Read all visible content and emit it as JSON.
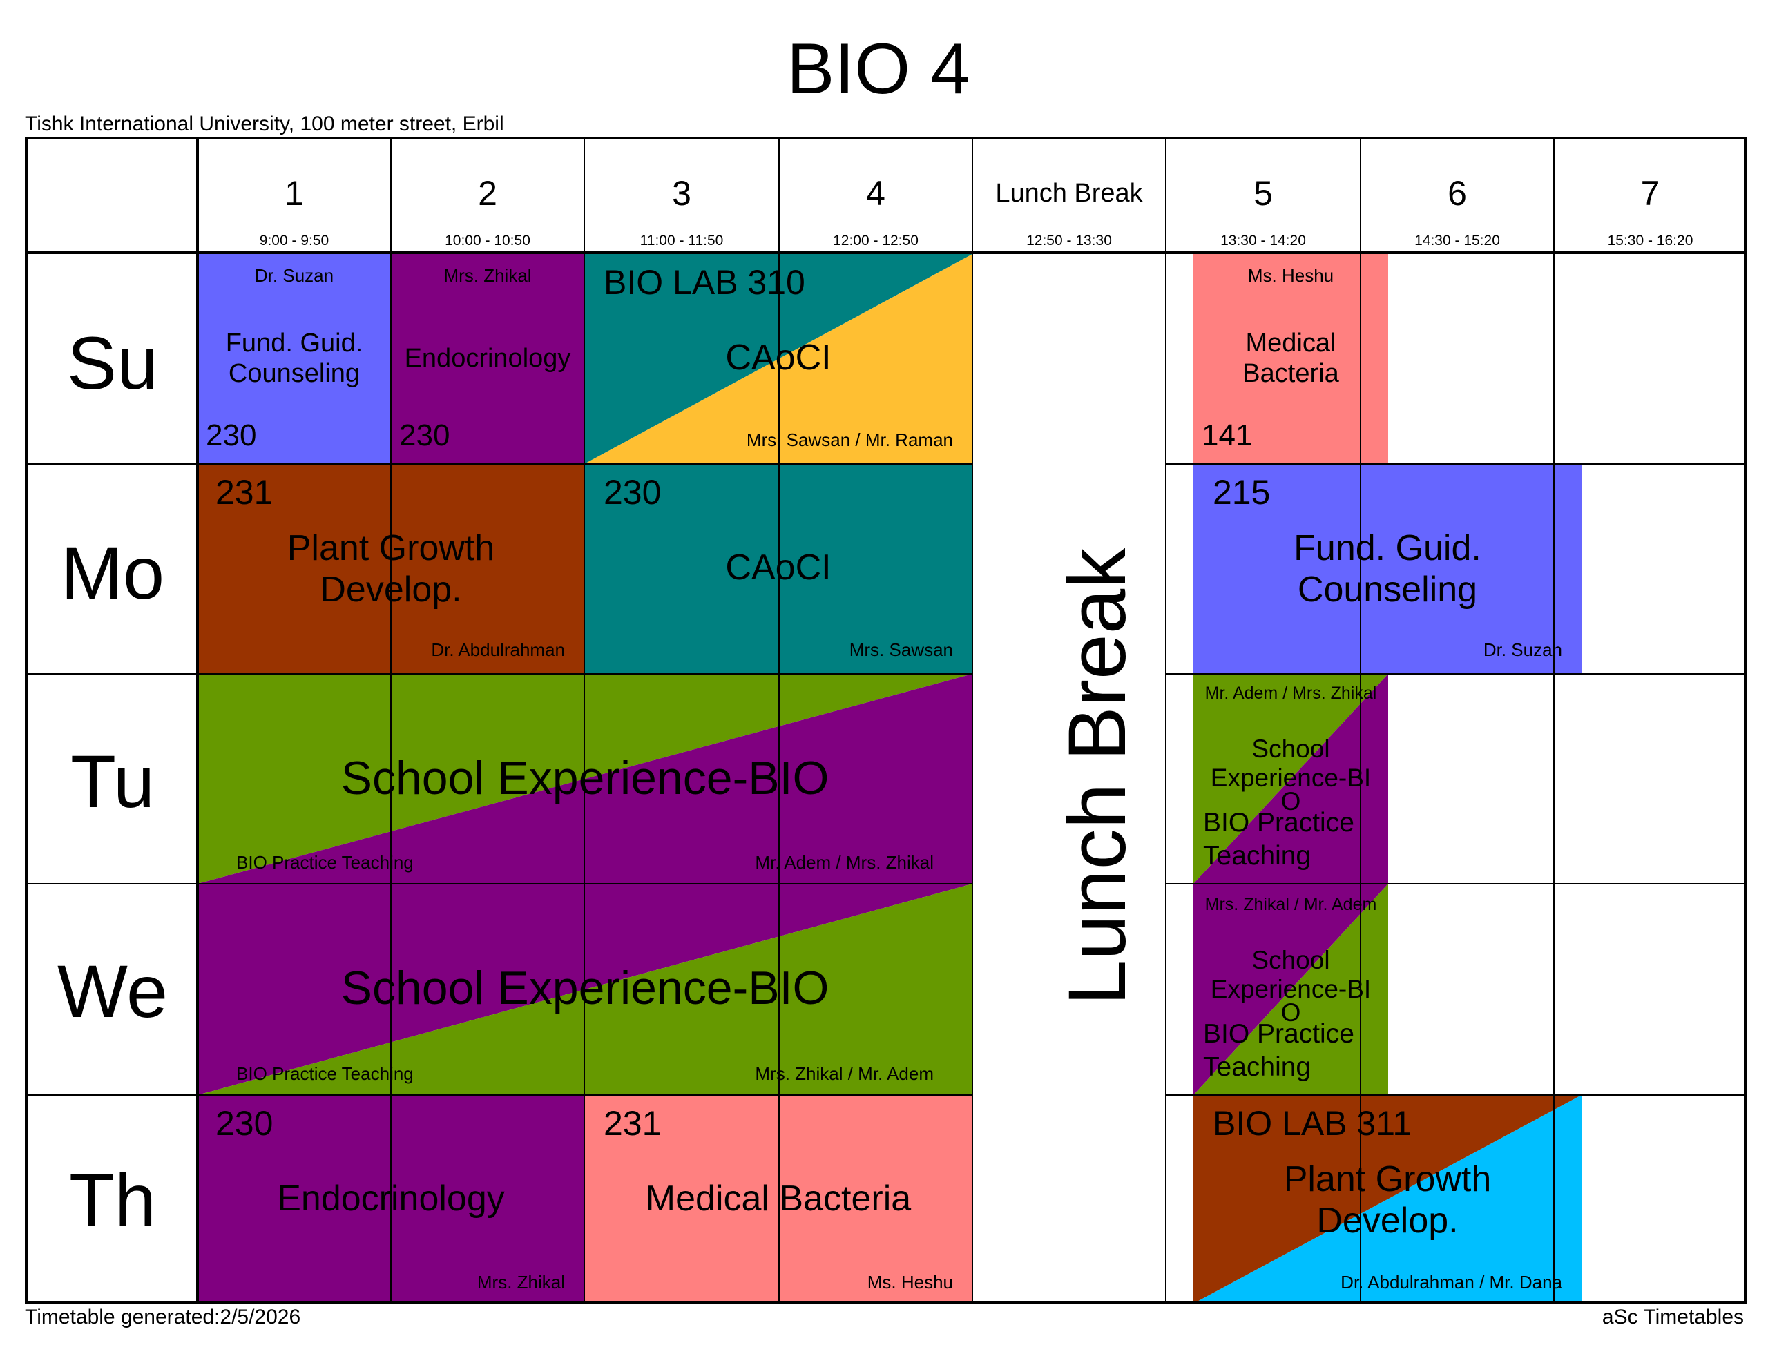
{
  "title": "BIO 4",
  "org": "Tishk International University, 100 meter street, Erbil",
  "footer": {
    "generated": "Timetable generated:2/5/2026",
    "brand": "aSc Timetables"
  },
  "periods": [
    {
      "label": "1",
      "time": "9:00 - 9:50"
    },
    {
      "label": "2",
      "time": "10:00 - 10:50"
    },
    {
      "label": "3",
      "time": "11:00 - 11:50"
    },
    {
      "label": "4",
      "time": "12:00 - 12:50"
    },
    {
      "label": "Lunch Break",
      "time": "12:50 - 13:30"
    },
    {
      "label": "5",
      "time": "13:30 - 14:20"
    },
    {
      "label": "6",
      "time": "14:30 - 15:20"
    },
    {
      "label": "7",
      "time": "15:30 - 16:20"
    }
  ],
  "days": [
    "Su",
    "Mo",
    "Tu",
    "We",
    "Th"
  ],
  "lunch_label": "Lunch Break",
  "colors": {
    "blue_violet": "#6666ff",
    "purple": "#800080",
    "teal": "#008080",
    "amber": "#ffbf32",
    "salmon": "#ff8080",
    "brown": "#993300",
    "green": "#669900",
    "sky": "#00bfff"
  },
  "lessons": {
    "su1": {
      "teacher": "Dr. Suzan",
      "subject_1": "Fund. Guid.",
      "subject_2": "Counseling",
      "room": "230"
    },
    "su2": {
      "teacher": "Mrs. Zhikal",
      "subject": "Endocrinology",
      "room": "230"
    },
    "su34": {
      "room": "BIO LAB 310",
      "subject": "CAoCI",
      "teacher": "Mrs. Sawsan / Mr. Raman"
    },
    "su5": {
      "teacher": "Ms. Heshu",
      "subject_1": "Medical",
      "subject_2": "Bacteria",
      "room": "141"
    },
    "mo12": {
      "room": "231",
      "subject_1": "Plant Growth",
      "subject_2": "Develop.",
      "teacher": "Dr. Abdulrahman"
    },
    "mo34": {
      "room": "230",
      "subject": "CAoCI",
      "teacher": "Mrs. Sawsan"
    },
    "mo56": {
      "room": "215",
      "subject_1": "Fund. Guid.",
      "subject_2": "Counseling",
      "teacher": "Dr. Suzan"
    },
    "tu14": {
      "subject": "School Experience-BIO",
      "group": "BIO Practice Teaching",
      "teacher": "Mr. Adem / Mrs. Zhikal"
    },
    "tu5": {
      "teacher": "Mr. Adem / Mrs. Zhikal",
      "subject_1": "School",
      "subject_2": "Experience-BI",
      "subject_3": "O",
      "group_1": "BIO Practice",
      "group_2": "Teaching"
    },
    "we14": {
      "subject": "School Experience-BIO",
      "group": "BIO Practice Teaching",
      "teacher": "Mrs. Zhikal / Mr. Adem"
    },
    "we5": {
      "teacher": "Mrs. Zhikal / Mr. Adem",
      "subject_1": "School",
      "subject_2": "Experience-BI",
      "subject_3": "O",
      "group_1": "BIO Practice",
      "group_2": "Teaching"
    },
    "th12": {
      "room": "230",
      "subject": "Endocrinology",
      "teacher": "Mrs. Zhikal"
    },
    "th34": {
      "room": "231",
      "subject": "Medical Bacteria",
      "teacher": "Ms. Heshu"
    },
    "th56": {
      "room": "BIO LAB 311",
      "subject_1": "Plant Growth",
      "subject_2": "Develop.",
      "teacher": "Dr. Abdulrahman / Mr. Dana"
    }
  }
}
